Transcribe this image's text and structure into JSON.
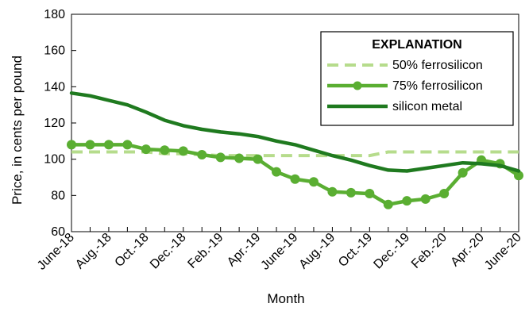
{
  "chart_data": {
    "type": "line",
    "xlabel": "Month",
    "ylabel": "Price, in cents per pound",
    "ylim": [
      60,
      180
    ],
    "yticks": [
      60,
      80,
      100,
      120,
      140,
      160,
      180
    ],
    "categories": [
      "June-18",
      "July-18",
      "Aug.-18",
      "Sept.-18",
      "Oct.-18",
      "Nov.-18",
      "Dec.-18",
      "Jan.-19",
      "Feb.-19",
      "Mar.-19",
      "Apr.-19",
      "May-19",
      "June-19",
      "July-19",
      "Aug.-19",
      "Sept.-19",
      "Oct.-19",
      "Nov.-19",
      "Dec.-19",
      "Jan.-20",
      "Feb.-20",
      "Mar.-20",
      "Apr.-20",
      "May-20",
      "June-20"
    ],
    "tick_labels": [
      "June-18",
      "Aug.-18",
      "Oct.-18",
      "Dec.-18",
      "Feb.-19",
      "Apr.-19",
      "June-19",
      "Aug.-19",
      "Oct.-19",
      "Dec.-19",
      "Feb.-20",
      "Apr.-20",
      "June-20"
    ],
    "legend": {
      "title": "EXPLANATION",
      "placement": "top-right"
    },
    "grid": false,
    "series": [
      {
        "name": "50% ferrosilicon",
        "style": "dashed",
        "markers": false,
        "color": "#b6dc8c",
        "values": [
          104,
          104,
          104,
          104,
          104,
          103,
          103,
          102.5,
          102,
          102,
          102,
          102,
          102,
          102,
          102,
          102,
          102,
          104,
          104,
          104,
          104,
          104,
          104,
          104,
          104
        ]
      },
      {
        "name": "75% ferrosilicon",
        "style": "solid",
        "markers": true,
        "color": "#5aae32",
        "values": [
          108,
          108,
          108,
          108,
          105.5,
          105,
          104.5,
          102.5,
          101,
          100.5,
          100,
          93,
          89,
          87.5,
          82,
          81.5,
          81,
          75,
          77,
          78,
          81,
          92.5,
          99.5,
          97.5,
          91
        ]
      },
      {
        "name": "silicon metal",
        "style": "solid",
        "markers": false,
        "color": "#1f7a1f",
        "values": [
          136.5,
          135,
          132.5,
          130,
          126,
          121.5,
          118.5,
          116.5,
          115,
          114,
          112.5,
          110,
          108,
          105,
          102,
          99.5,
          96.5,
          94,
          93.5,
          95,
          96.5,
          98,
          97.5,
          96.5,
          93.5
        ]
      }
    ]
  }
}
